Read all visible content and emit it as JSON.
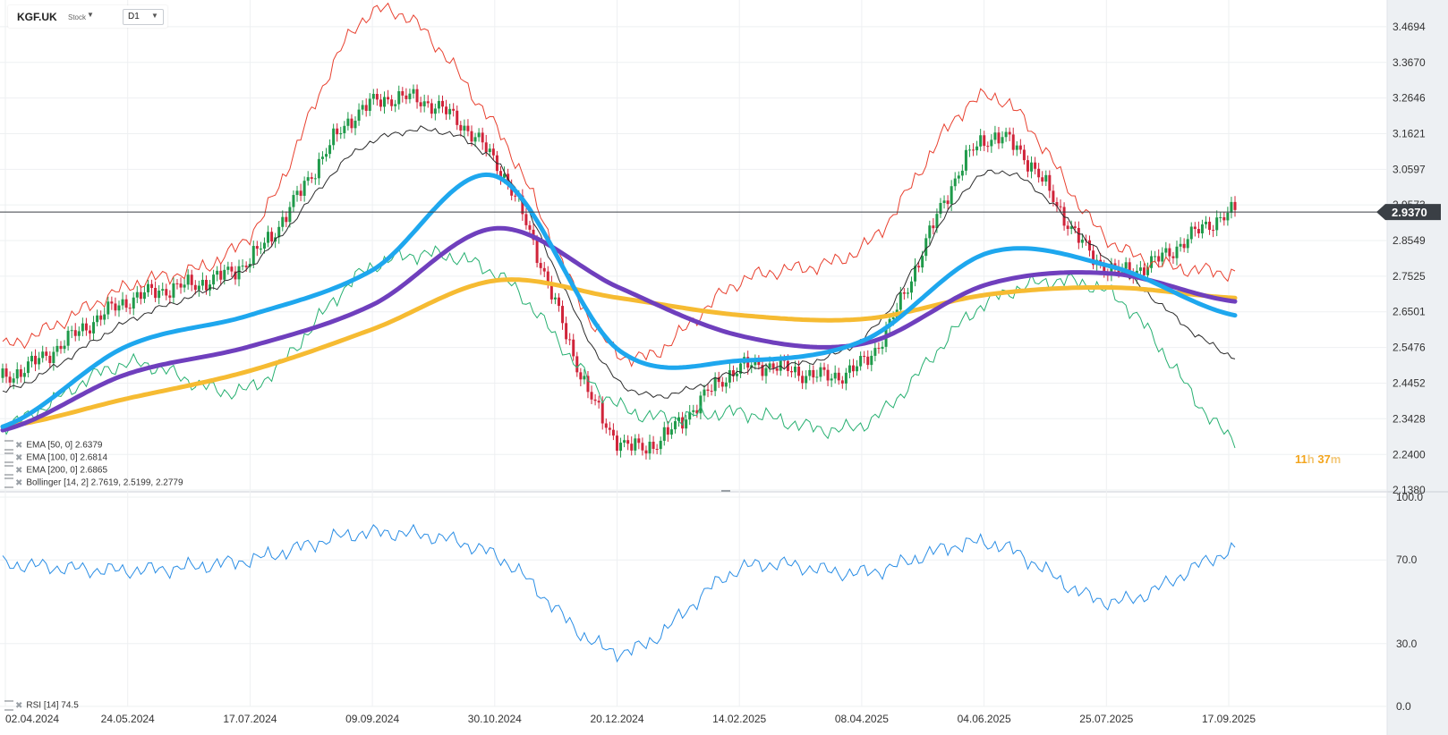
{
  "header": {
    "symbol": "KGF.UK",
    "symbol_type": "Stock",
    "dropdown_icon": "caret-down-icon",
    "timeframe": "D1",
    "timeframe_icon": "caret-down-icon"
  },
  "price_axis": {
    "ticks": [
      "3.4694",
      "3.3670",
      "3.2646",
      "3.1621",
      "3.0597",
      "2.9573",
      "2.8549",
      "2.7525",
      "2.6501",
      "2.5476",
      "2.4452",
      "2.3428",
      "2.2400",
      "2.1380"
    ],
    "current_price": "2.9370",
    "current_price_value": 2.937
  },
  "rsi_axis": {
    "ticks": [
      "100.0",
      "70.0",
      "30.0",
      "0.0"
    ]
  },
  "date_axis": [
    "02.04.2024",
    "24.05.2024",
    "17.07.2024",
    "09.09.2024",
    "30.10.2024",
    "20.12.2024",
    "14.02.2025",
    "08.04.2025",
    "04.06.2025",
    "25.07.2025",
    "17.09.2025"
  ],
  "legend": {
    "ema50": "EMA  [50, 0]  2.6379",
    "ema100": "EMA  [100, 0]  2.6814",
    "ema200": "EMA  [200, 0]  2.6865",
    "bollinger": "Bollinger  [14, 2]  2.7619,  2.5199,  2.2779",
    "rsi": "RSI  [14]  74.5"
  },
  "timer": {
    "h": "11",
    "h_unit": "h",
    "m": "37",
    "m_unit": "m"
  },
  "colors": {
    "ema50": "#1ea7ee",
    "ema100": "#6f3fbd",
    "ema200": "#f6bb32",
    "bb_upper": "#e8402f",
    "bb_mid": "#2b2b2b",
    "bb_lower": "#27b071",
    "candle_up": "#1f9a4a",
    "candle_down": "#d0243a",
    "rsi": "#2b8ee5"
  },
  "chart_data": {
    "type": "line",
    "symbol": "KGF.UK",
    "timeframe": "D1",
    "x": [
      "02.04.2024",
      "24.05.2024",
      "17.07.2024",
      "09.09.2024",
      "30.10.2024",
      "20.12.2024",
      "14.02.2025",
      "08.04.2025",
      "04.06.2025",
      "25.07.2025",
      "17.09.2025"
    ],
    "ylim": [
      2.138,
      3.5
    ],
    "series": [
      {
        "name": "EMA [50, 0]",
        "values": [
          2.32,
          2.55,
          2.64,
          2.77,
          3.04,
          2.54,
          2.51,
          2.57,
          2.82,
          2.78,
          2.64
        ]
      },
      {
        "name": "EMA [100, 0]",
        "values": [
          2.31,
          2.47,
          2.55,
          2.67,
          2.89,
          2.72,
          2.58,
          2.56,
          2.73,
          2.76,
          2.68
        ]
      },
      {
        "name": "EMA [200, 0]",
        "values": [
          2.32,
          2.4,
          2.48,
          2.6,
          2.74,
          2.69,
          2.64,
          2.63,
          2.7,
          2.72,
          2.69
        ]
      },
      {
        "name": "Bollinger upper",
        "values": [
          2.55,
          2.72,
          2.87,
          3.51,
          3.18,
          2.53,
          2.74,
          2.84,
          3.27,
          2.85,
          2.76
        ]
      },
      {
        "name": "Bollinger middle",
        "values": [
          2.42,
          2.62,
          2.78,
          3.14,
          3.08,
          2.45,
          2.48,
          2.58,
          3.05,
          2.79,
          2.52
        ]
      },
      {
        "name": "Bollinger lower",
        "values": [
          2.32,
          2.5,
          2.43,
          2.78,
          2.76,
          2.38,
          2.36,
          2.33,
          2.68,
          2.7,
          2.28
        ]
      },
      {
        "name": "Close",
        "values": [
          2.46,
          2.68,
          2.8,
          3.25,
          3.08,
          2.28,
          2.49,
          2.51,
          3.15,
          2.77,
          2.937
        ]
      },
      {
        "name": "RSI [14]",
        "values": [
          68,
          65,
          70,
          83,
          72,
          26,
          66,
          64,
          78,
          50,
          74.5
        ]
      }
    ],
    "rsi_ylim": [
      0,
      100
    ],
    "rsi_levels": [
      70,
      30
    ]
  }
}
